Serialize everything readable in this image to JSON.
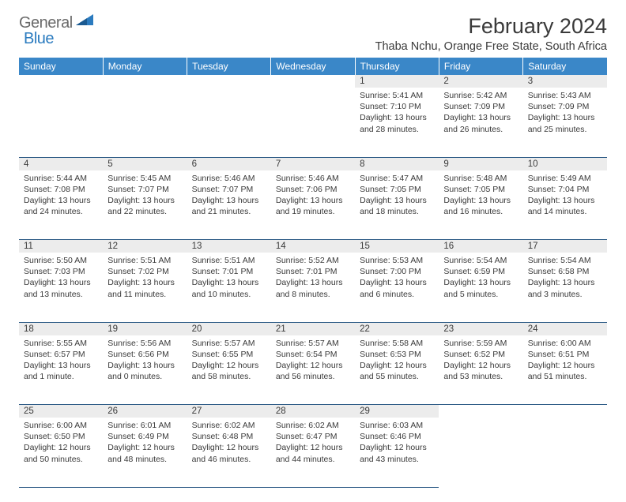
{
  "brand": {
    "part1": "General",
    "part2": "Blue"
  },
  "title": "February 2024",
  "location": "Thaba Nchu, Orange Free State, South Africa",
  "colors": {
    "header_bg": "#3a87c8",
    "header_text": "#ffffff",
    "daynum_bg": "#ececec",
    "rule": "#2c5a85",
    "text": "#3a3a3a",
    "brand_gray": "#6a6a6a",
    "brand_blue": "#2b7bbf"
  },
  "day_headers": [
    "Sunday",
    "Monday",
    "Tuesday",
    "Wednesday",
    "Thursday",
    "Friday",
    "Saturday"
  ],
  "weeks": [
    [
      null,
      null,
      null,
      null,
      {
        "n": "1",
        "sr": "5:41 AM",
        "ss": "7:10 PM",
        "dl": "13 hours and 28 minutes."
      },
      {
        "n": "2",
        "sr": "5:42 AM",
        "ss": "7:09 PM",
        "dl": "13 hours and 26 minutes."
      },
      {
        "n": "3",
        "sr": "5:43 AM",
        "ss": "7:09 PM",
        "dl": "13 hours and 25 minutes."
      }
    ],
    [
      {
        "n": "4",
        "sr": "5:44 AM",
        "ss": "7:08 PM",
        "dl": "13 hours and 24 minutes."
      },
      {
        "n": "5",
        "sr": "5:45 AM",
        "ss": "7:07 PM",
        "dl": "13 hours and 22 minutes."
      },
      {
        "n": "6",
        "sr": "5:46 AM",
        "ss": "7:07 PM",
        "dl": "13 hours and 21 minutes."
      },
      {
        "n": "7",
        "sr": "5:46 AM",
        "ss": "7:06 PM",
        "dl": "13 hours and 19 minutes."
      },
      {
        "n": "8",
        "sr": "5:47 AM",
        "ss": "7:05 PM",
        "dl": "13 hours and 18 minutes."
      },
      {
        "n": "9",
        "sr": "5:48 AM",
        "ss": "7:05 PM",
        "dl": "13 hours and 16 minutes."
      },
      {
        "n": "10",
        "sr": "5:49 AM",
        "ss": "7:04 PM",
        "dl": "13 hours and 14 minutes."
      }
    ],
    [
      {
        "n": "11",
        "sr": "5:50 AM",
        "ss": "7:03 PM",
        "dl": "13 hours and 13 minutes."
      },
      {
        "n": "12",
        "sr": "5:51 AM",
        "ss": "7:02 PM",
        "dl": "13 hours and 11 minutes."
      },
      {
        "n": "13",
        "sr": "5:51 AM",
        "ss": "7:01 PM",
        "dl": "13 hours and 10 minutes."
      },
      {
        "n": "14",
        "sr": "5:52 AM",
        "ss": "7:01 PM",
        "dl": "13 hours and 8 minutes."
      },
      {
        "n": "15",
        "sr": "5:53 AM",
        "ss": "7:00 PM",
        "dl": "13 hours and 6 minutes."
      },
      {
        "n": "16",
        "sr": "5:54 AM",
        "ss": "6:59 PM",
        "dl": "13 hours and 5 minutes."
      },
      {
        "n": "17",
        "sr": "5:54 AM",
        "ss": "6:58 PM",
        "dl": "13 hours and 3 minutes."
      }
    ],
    [
      {
        "n": "18",
        "sr": "5:55 AM",
        "ss": "6:57 PM",
        "dl": "13 hours and 1 minute."
      },
      {
        "n": "19",
        "sr": "5:56 AM",
        "ss": "6:56 PM",
        "dl": "13 hours and 0 minutes."
      },
      {
        "n": "20",
        "sr": "5:57 AM",
        "ss": "6:55 PM",
        "dl": "12 hours and 58 minutes."
      },
      {
        "n": "21",
        "sr": "5:57 AM",
        "ss": "6:54 PM",
        "dl": "12 hours and 56 minutes."
      },
      {
        "n": "22",
        "sr": "5:58 AM",
        "ss": "6:53 PM",
        "dl": "12 hours and 55 minutes."
      },
      {
        "n": "23",
        "sr": "5:59 AM",
        "ss": "6:52 PM",
        "dl": "12 hours and 53 minutes."
      },
      {
        "n": "24",
        "sr": "6:00 AM",
        "ss": "6:51 PM",
        "dl": "12 hours and 51 minutes."
      }
    ],
    [
      {
        "n": "25",
        "sr": "6:00 AM",
        "ss": "6:50 PM",
        "dl": "12 hours and 50 minutes."
      },
      {
        "n": "26",
        "sr": "6:01 AM",
        "ss": "6:49 PM",
        "dl": "12 hours and 48 minutes."
      },
      {
        "n": "27",
        "sr": "6:02 AM",
        "ss": "6:48 PM",
        "dl": "12 hours and 46 minutes."
      },
      {
        "n": "28",
        "sr": "6:02 AM",
        "ss": "6:47 PM",
        "dl": "12 hours and 44 minutes."
      },
      {
        "n": "29",
        "sr": "6:03 AM",
        "ss": "6:46 PM",
        "dl": "12 hours and 43 minutes."
      },
      null,
      null
    ]
  ],
  "labels": {
    "sunrise": "Sunrise:",
    "sunset": "Sunset:",
    "daylight": "Daylight:"
  }
}
